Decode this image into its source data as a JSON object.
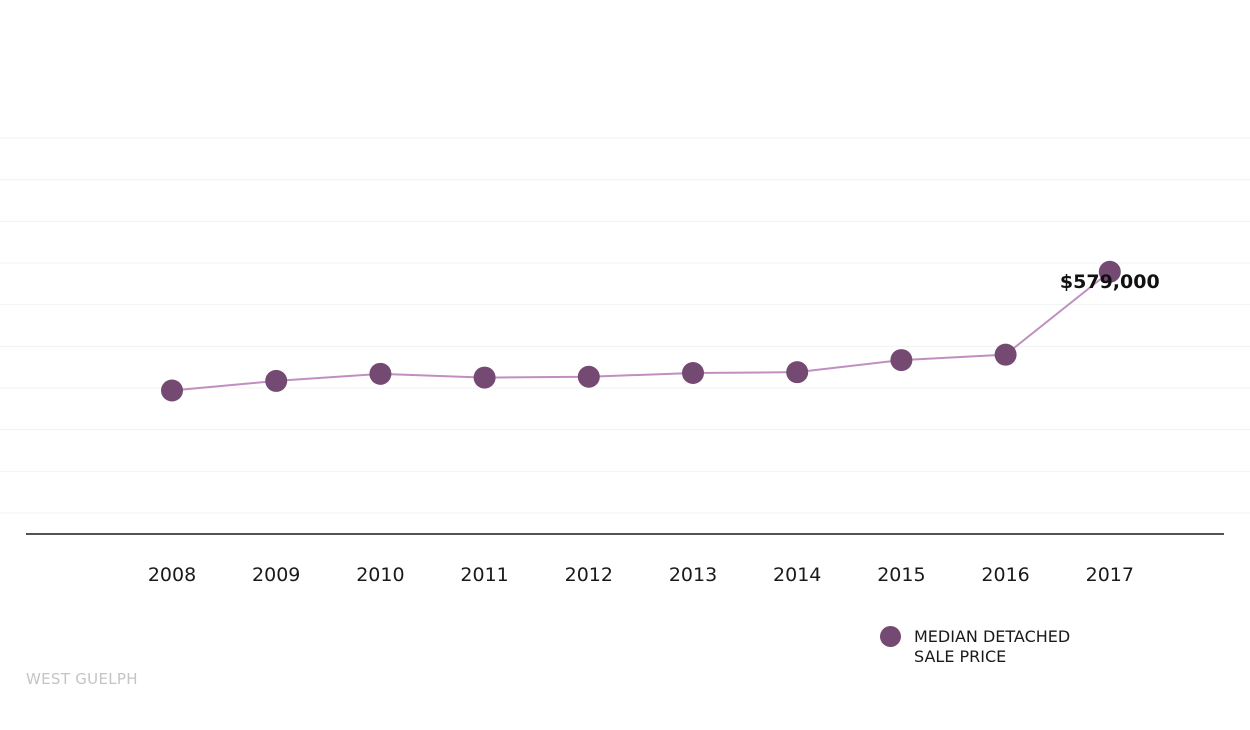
{
  "chart_data": {
    "type": "line",
    "categories": [
      "2008",
      "2009",
      "2010",
      "2011",
      "2012",
      "2013",
      "2014",
      "2015",
      "2016",
      "2017"
    ],
    "series": [
      {
        "name": "MEDIAN DETACHED SALE PRICE",
        "values": [
          294000,
          317000,
          334000,
          325000,
          327000,
          336000,
          338000,
          367000,
          380000,
          579000
        ],
        "color": "#754a72",
        "line_color": "#c08fc0"
      }
    ],
    "annotations": [
      {
        "category": "2017",
        "label": "$579,000"
      }
    ],
    "ylim": [
      0,
      900000
    ],
    "grid": true,
    "legend_position": "bottom-right",
    "axis_color": "#1a1a1a",
    "grid_color": "#f3f3f3"
  },
  "legend": {
    "label": "MEDIAN DETACHED SALE PRICE"
  },
  "footer": {
    "label": "WEST GUELPH"
  }
}
